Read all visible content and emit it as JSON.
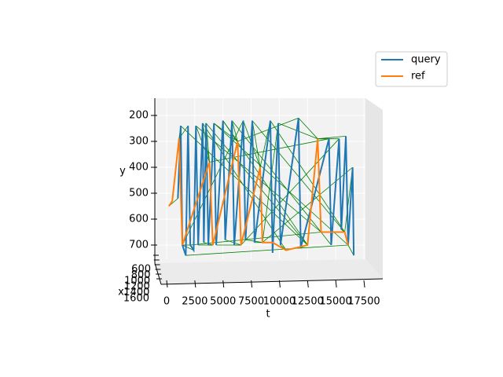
{
  "chart_data": {
    "type": "line3d",
    "xlabel": "t",
    "ylabel": "y",
    "zlabel": "x",
    "xlim": [
      0,
      17500
    ],
    "xticks": [
      0,
      2500,
      5000,
      7500,
      10000,
      12500,
      15000,
      17500
    ],
    "ylim": [
      200,
      700
    ],
    "yticks": [
      200,
      300,
      400,
      500,
      600,
      700
    ],
    "zticks": [
      600,
      800,
      1000,
      1200,
      1400,
      1600
    ],
    "legend": "upper right",
    "series": [
      {
        "name": "query",
        "color": "#1f77b4",
        "x": [
          1000,
          1250,
          1400,
          1700,
          1900,
          2100,
          2400,
          2600,
          2800,
          3200,
          3300,
          3500,
          3700,
          4200,
          4400,
          5000,
          5200,
          5800,
          6000,
          6800,
          7000,
          7600,
          7800,
          9200,
          9400,
          9900,
          10100,
          11700,
          11900,
          14400,
          14600,
          15300,
          15500,
          15900,
          16100,
          16500,
          16600
        ],
        "values": [
          520,
          240,
          700,
          740,
          240,
          700,
          720,
          240,
          700,
          230,
          690,
          230,
          700,
          230,
          700,
          220,
          680,
          220,
          700,
          220,
          680,
          220,
          690,
          220,
          730,
          230,
          700,
          210,
          710,
          290,
          700,
          290,
          640,
          280,
          700,
          400,
          740
        ]
      },
      {
        "name": "ref",
        "color": "#ff7f0e",
        "x": [
          200,
          500,
          1100,
          1400,
          3800,
          4100,
          6300,
          6600,
          8300,
          8500,
          9400,
          10600,
          12500,
          13400,
          13700,
          15800,
          16100
        ],
        "values": [
          550,
          530,
          290,
          700,
          380,
          700,
          300,
          700,
          400,
          690,
          690,
          720,
          700,
          290,
          650,
          650,
          700
        ]
      }
    ],
    "alignment_color": "#008000",
    "alignment": [
      [
        0,
        0
      ],
      [
        1,
        2
      ],
      [
        2,
        3
      ],
      [
        3,
        3
      ],
      [
        4,
        2
      ],
      [
        5,
        3
      ],
      [
        6,
        3
      ],
      [
        7,
        4
      ],
      [
        8,
        5
      ],
      [
        9,
        4
      ],
      [
        10,
        5
      ],
      [
        11,
        4
      ],
      [
        12,
        5
      ],
      [
        13,
        6
      ],
      [
        14,
        7
      ],
      [
        15,
        6
      ],
      [
        16,
        7
      ],
      [
        17,
        6
      ],
      [
        18,
        7
      ],
      [
        19,
        8
      ],
      [
        20,
        9
      ],
      [
        21,
        8
      ],
      [
        22,
        9
      ],
      [
        23,
        8
      ],
      [
        24,
        10
      ],
      [
        25,
        13
      ],
      [
        26,
        11
      ],
      [
        27,
        13
      ],
      [
        28,
        12
      ],
      [
        29,
        13
      ],
      [
        30,
        14
      ],
      [
        31,
        13
      ],
      [
        32,
        15
      ],
      [
        33,
        13
      ],
      [
        34,
        16
      ],
      [
        35,
        15
      ],
      [
        36,
        16
      ],
      [
        1,
        12
      ],
      [
        5,
        14
      ],
      [
        9,
        11
      ],
      [
        15,
        12
      ],
      [
        17,
        14
      ],
      [
        21,
        15
      ],
      [
        25,
        9
      ],
      [
        27,
        6
      ],
      [
        13,
        16
      ],
      [
        19,
        3
      ],
      [
        23,
        15
      ],
      [
        7,
        14
      ],
      [
        11,
        12
      ],
      [
        3,
        16
      ],
      [
        29,
        4
      ],
      [
        31,
        7
      ],
      [
        35,
        9
      ]
    ]
  }
}
